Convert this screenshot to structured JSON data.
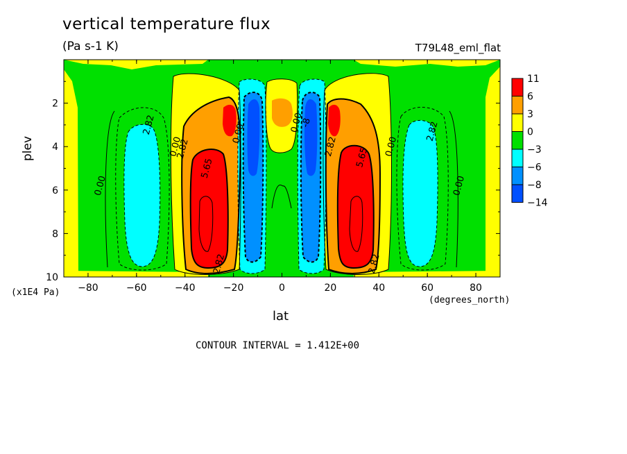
{
  "title": "vertical temperature flux",
  "units": "(Pa s-1 K)",
  "experiment": "T79L48_eml_flat",
  "contour_interval": "CONTOUR INTERVAL = 1.412E+00",
  "chart_data": {
    "type": "contour",
    "xlabel": "lat",
    "xunit": "(degrees_north)",
    "ylabel": "plev",
    "yunit": "(x1E4 Pa)",
    "xlim": [
      -90,
      90
    ],
    "ylim": [
      10,
      0
    ],
    "xticks": [
      -80,
      -60,
      -40,
      -20,
      0,
      20,
      40,
      60,
      80
    ],
    "yticks": [
      2,
      4,
      6,
      8,
      10
    ],
    "colorbar": {
      "labels": [
        "11",
        "6",
        "3",
        "0",
        "-3",
        "-6",
        "-8",
        "-14"
      ],
      "colors": [
        "#ff0000",
        "#ff9f00",
        "#ffff00",
        "#00e000",
        "#00ffff",
        "#0090ff",
        "#0050ff"
      ]
    },
    "contour_labels": [
      {
        "text": "2.82",
        "lat": -55,
        "plev": 3.0
      },
      {
        "text": "0.00",
        "lat": -75,
        "plev": 5.8
      },
      {
        "text": "0.00",
        "lat": -44,
        "plev": 4.0
      },
      {
        "text": "2.82",
        "lat": -41,
        "plev": 4.1
      },
      {
        "text": "5.65",
        "lat": -31,
        "plev": 5.0
      },
      {
        "text": "2.82",
        "lat": -26,
        "plev": 9.4
      },
      {
        "text": "0.00",
        "lat": -18,
        "plev": 3.4
      },
      {
        "text": "0.00",
        "lat": 6,
        "plev": 2.9
      },
      {
        "text": "-8",
        "lat": 10,
        "plev": 2.9
      },
      {
        "text": "2.82",
        "lat": 20,
        "plev": 4.0
      },
      {
        "text": "5.65",
        "lat": 33,
        "plev": 4.5
      },
      {
        "text": "2.82",
        "lat": 38,
        "plev": 9.4
      },
      {
        "text": "0.00",
        "lat": 45,
        "plev": 4.0
      },
      {
        "text": "2.82",
        "lat": 62,
        "plev": 3.3
      },
      {
        "text": "0.00",
        "lat": 73,
        "plev": 5.8
      }
    ]
  }
}
